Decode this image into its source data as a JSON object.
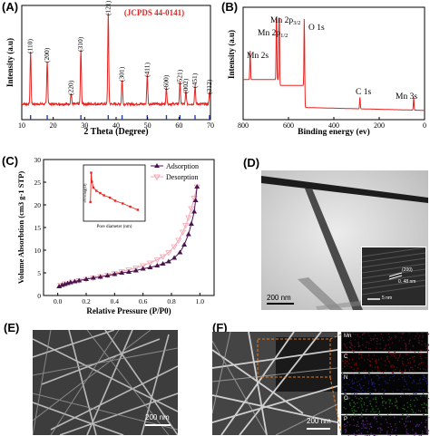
{
  "figure": {
    "panels": [
      {
        "label": "(A)"
      },
      {
        "label": "(B)"
      },
      {
        "label": "(C)"
      },
      {
        "label": "(D)"
      },
      {
        "label": "(E)"
      },
      {
        "label": "(F)"
      }
    ]
  },
  "chart_data": [
    {
      "type": "line",
      "panel": "(A)",
      "title": "",
      "annotation": "(JCPDS 44-0141)",
      "xlabel": "2 Theta (Degree)",
      "ylabel": "Intensity (a.u)",
      "xlim": [
        10,
        70
      ],
      "x_ticks": [
        "10",
        "20",
        "30",
        "40",
        "50",
        "60",
        "70"
      ],
      "peaks": [
        {
          "x": 12.8,
          "rel": 0.58,
          "label": "(110)"
        },
        {
          "x": 18.1,
          "rel": 0.48,
          "label": "(200)"
        },
        {
          "x": 25.7,
          "rel": 0.12,
          "label": "(220)"
        },
        {
          "x": 28.8,
          "rel": 0.6,
          "label": "(310)"
        },
        {
          "x": 37.5,
          "rel": 1.0,
          "label": "(121)"
        },
        {
          "x": 41.9,
          "rel": 0.27,
          "label": "(301)"
        },
        {
          "x": 49.9,
          "rel": 0.32,
          "label": "(411)"
        },
        {
          "x": 56.0,
          "rel": 0.18,
          "label": "(600)"
        },
        {
          "x": 60.3,
          "rel": 0.24,
          "label": "(521)"
        },
        {
          "x": 62.2,
          "rel": 0.14,
          "label": "(002)"
        },
        {
          "x": 65.1,
          "rel": 0.2,
          "label": "(451)"
        },
        {
          "x": 69.7,
          "rel": 0.13,
          "label": "(312)"
        }
      ],
      "reference_lines_x": [
        12.8,
        18.1,
        28.8,
        37.5,
        41.9,
        49.9,
        56.0,
        60.3,
        65.1,
        69.7
      ],
      "line_color": "#e8231f",
      "reference_color": "#1f3fbf"
    },
    {
      "type": "line",
      "panel": "(B)",
      "title": "",
      "xlabel": "Binding energy (ev)",
      "ylabel": "Intensity (a.u)",
      "xlim": [
        800,
        0
      ],
      "x_ticks": [
        "800",
        "600",
        "400",
        "200",
        "0"
      ],
      "peaks": [
        {
          "x": 769,
          "rel": 0.3,
          "label": "Mn 2s"
        },
        {
          "x": 653,
          "rel": 0.78,
          "label": "Mn 2p1/2"
        },
        {
          "x": 641,
          "rel": 0.95,
          "label": "Mn 2p3/2"
        },
        {
          "x": 530,
          "rel": 0.85,
          "label": "O 1s"
        },
        {
          "x": 285,
          "rel": 0.12,
          "label": "C 1s"
        },
        {
          "x": 48,
          "rel": 0.13,
          "label": "Mn 3s"
        }
      ],
      "line_color": "#e8231f"
    },
    {
      "type": "line",
      "panel": "(C)",
      "title": "",
      "xlabel": "Relative Pressure (P/P0)",
      "ylabel": "Volume Absorbtion (cm3 g-1 STP)",
      "xlim": [
        -0.1,
        1.1
      ],
      "ylim": [
        0,
        30
      ],
      "x_ticks": [
        "0.0",
        "0.2",
        "0.4",
        "0.6",
        "0.8",
        "1.0"
      ],
      "y_ticks": [
        "0",
        "5",
        "10",
        "15",
        "20",
        "25",
        "30"
      ],
      "legend": "top-right",
      "series": [
        {
          "name": "Adsorption",
          "color": "#4b1450",
          "x": [
            0.01,
            0.03,
            0.05,
            0.07,
            0.09,
            0.12,
            0.15,
            0.2,
            0.25,
            0.3,
            0.35,
            0.4,
            0.45,
            0.5,
            0.55,
            0.6,
            0.65,
            0.7,
            0.74,
            0.78,
            0.82,
            0.86,
            0.89,
            0.92,
            0.94,
            0.96,
            0.97,
            0.98
          ],
          "y": [
            2.0,
            2.3,
            2.5,
            2.7,
            2.9,
            3.1,
            3.3,
            3.6,
            3.9,
            4.1,
            4.4,
            4.7,
            5.0,
            5.2,
            5.5,
            5.9,
            6.2,
            6.6,
            7.0,
            7.5,
            8.3,
            9.5,
            11.2,
            13.5,
            15.8,
            18.5,
            21.0,
            24.0
          ]
        },
        {
          "name": "Desorption",
          "color": "#f4a6b4",
          "x": [
            0.98,
            0.96,
            0.94,
            0.92,
            0.9,
            0.88,
            0.85,
            0.82,
            0.78,
            0.74,
            0.7,
            0.65,
            0.6,
            0.55,
            0.5,
            0.45,
            0.4,
            0.35,
            0.3,
            0.25,
            0.2,
            0.15,
            0.1,
            0.05,
            0.02
          ],
          "y": [
            24.0,
            21.5,
            19.2,
            17.2,
            15.5,
            14.0,
            12.2,
            10.8,
            9.5,
            8.6,
            7.9,
            7.2,
            6.6,
            6.1,
            5.7,
            5.3,
            4.9,
            4.5,
            4.2,
            3.9,
            3.6,
            3.3,
            3.0,
            2.6,
            2.3
          ]
        }
      ],
      "inset": {
        "xlabel": "Pore diameter (nm)",
        "ylabel": "dV/dlog(D)",
        "color": "#e8231f",
        "x": [
          2,
          3,
          4,
          6,
          10,
          15,
          20,
          28,
          35,
          45,
          55,
          65
        ],
        "y": [
          0.3,
          0.95,
          0.75,
          0.62,
          0.55,
          0.5,
          0.45,
          0.4,
          0.33,
          0.27,
          0.2,
          0.13
        ]
      }
    }
  ],
  "images": {
    "d_scalebar": "200 nm",
    "d_inset_scalebar": "5 nm",
    "d_inset_annotation": "(200)",
    "d_inset_spacing": "0. 48 nm",
    "e_scalebar": "200 nm",
    "f_scalebar": "200 nm",
    "f_maps": [
      {
        "label": "Mn",
        "color": "#5a1420"
      },
      {
        "label": "C",
        "color": "#7a0a0a"
      },
      {
        "label": "N",
        "color": "#1a1f6a"
      },
      {
        "label": "O",
        "color": "#1f6a1f"
      },
      {
        "label": "P",
        "color": "#5a2a7a"
      }
    ]
  }
}
